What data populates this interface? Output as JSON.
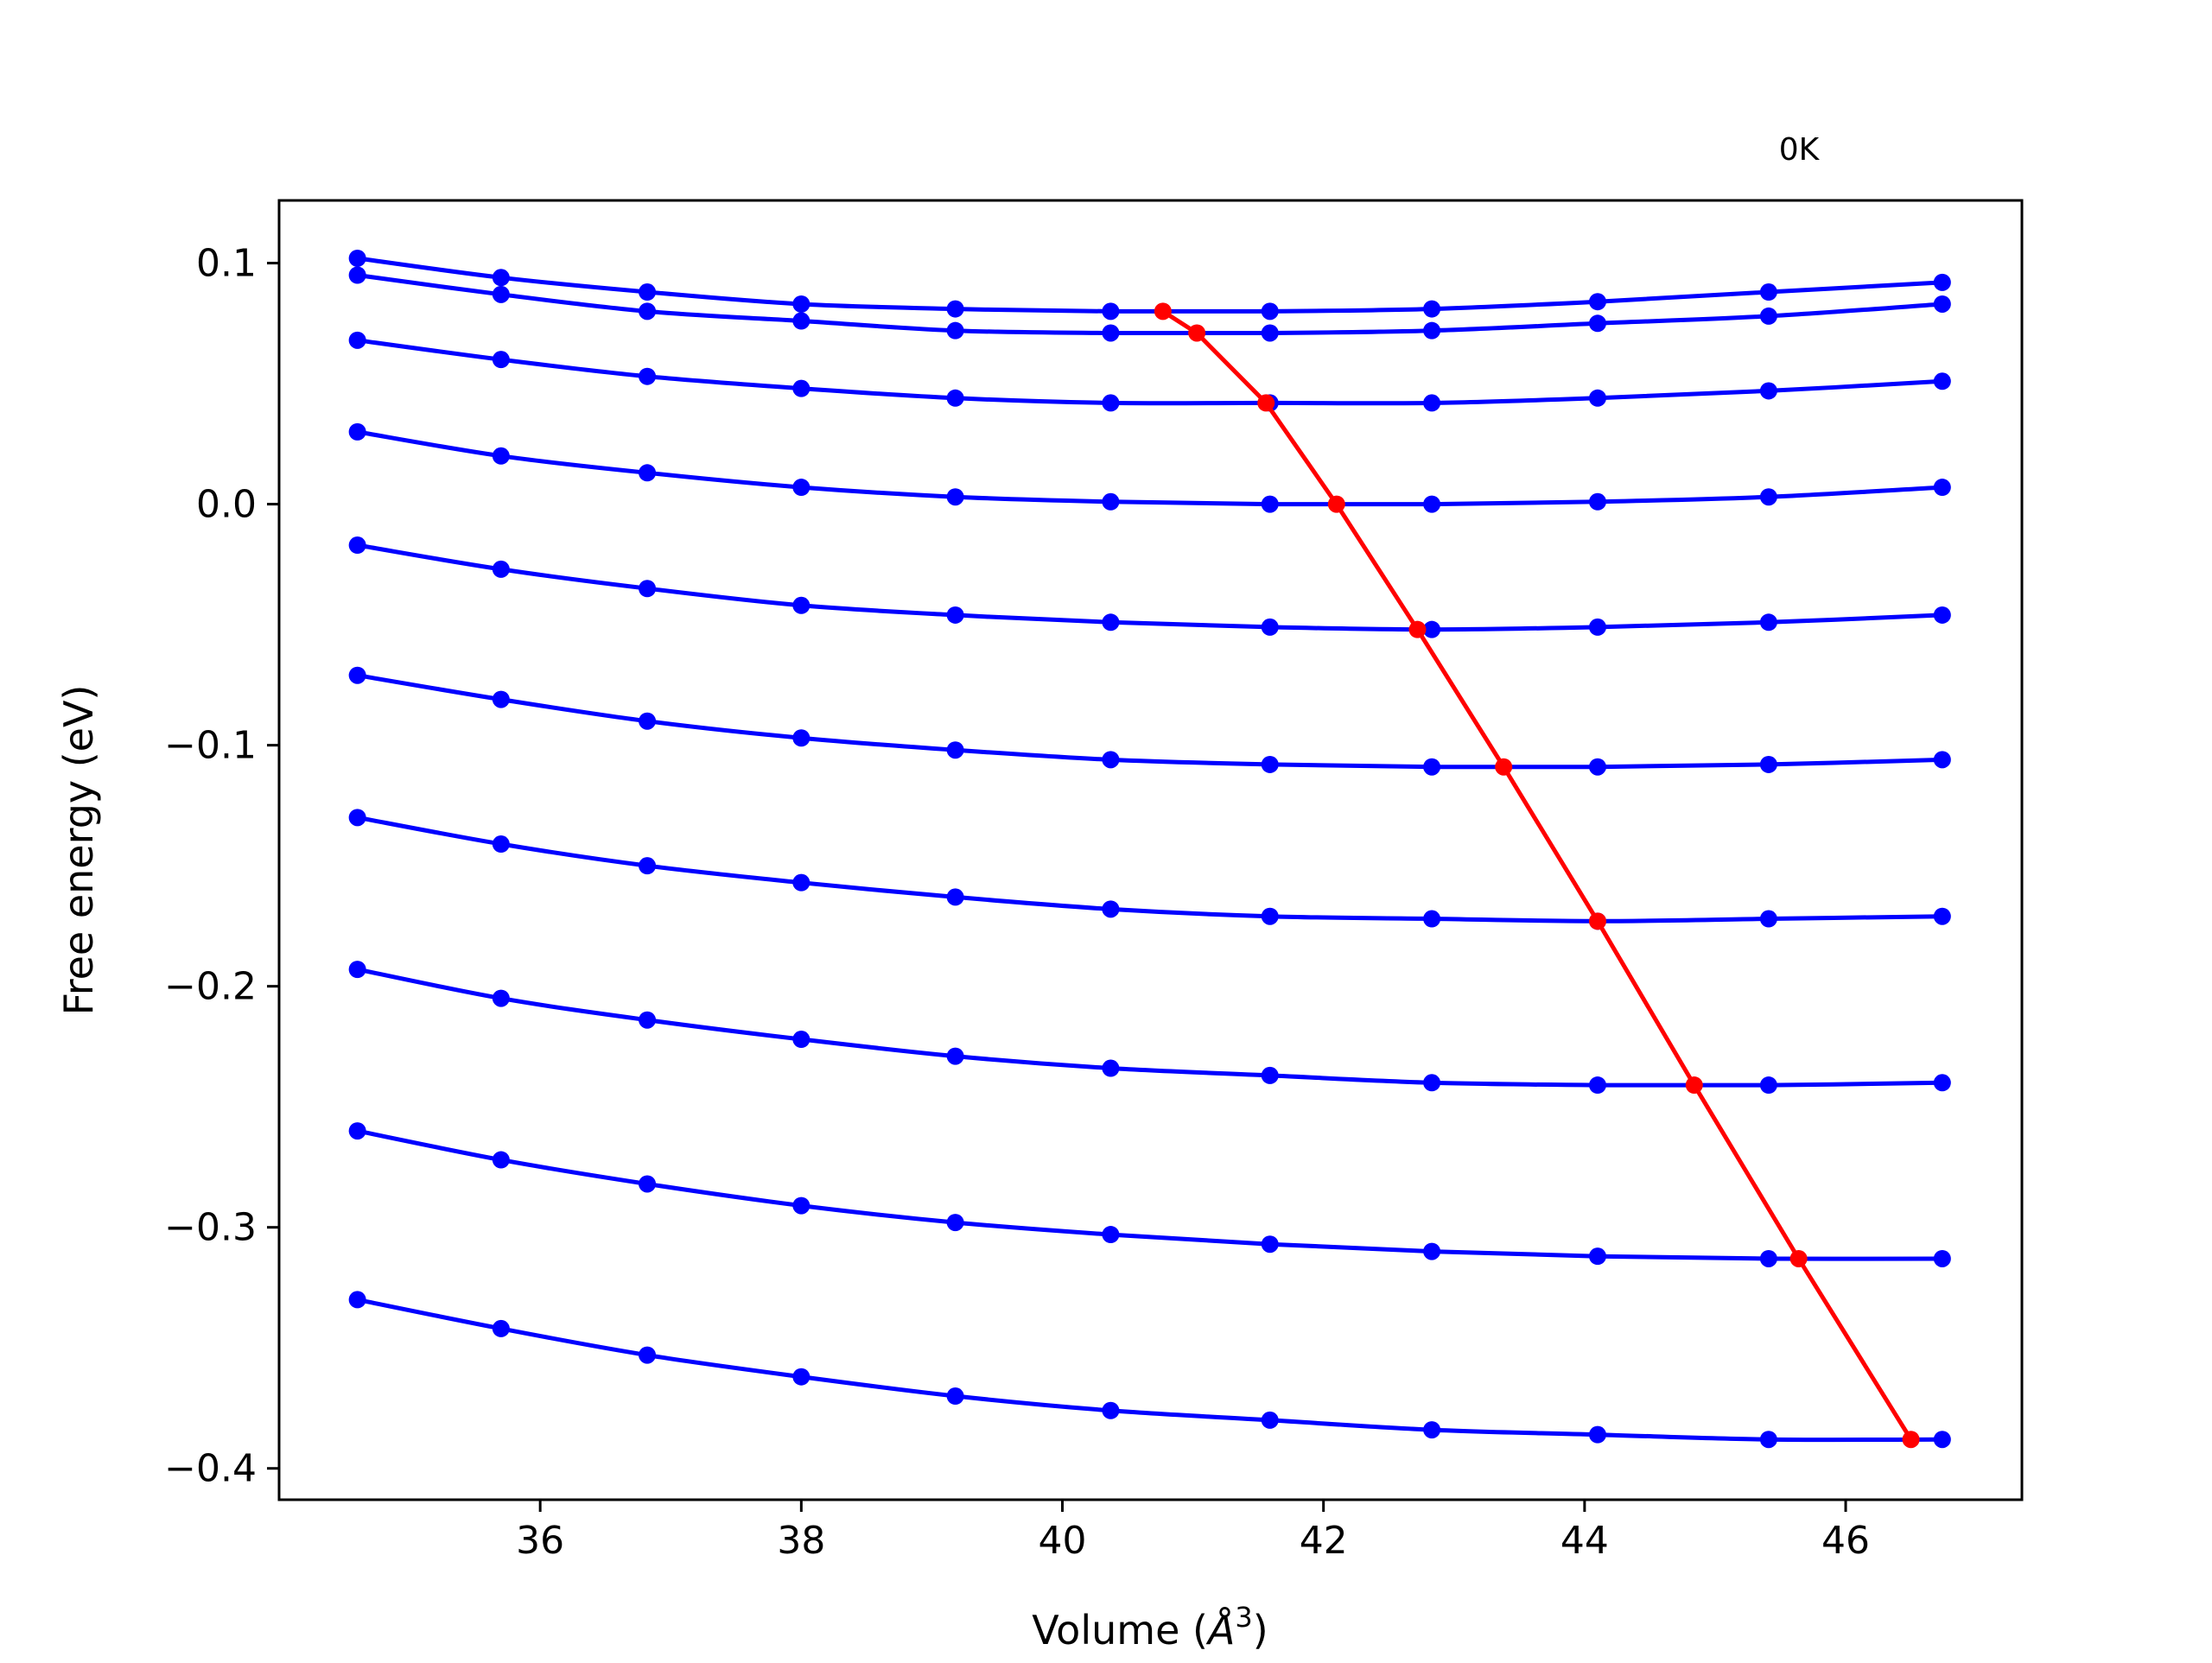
{
  "chart_data": {
    "type": "line",
    "title": "",
    "annotation": "0K",
    "xlabel": "Volume (",
    "xlabel_symbol": "Å",
    "xlabel_sup": "3",
    "xlabel_close": ")",
    "ylabel": "Free energy (eV)",
    "xlim": [
      34.0,
      47.35
    ],
    "ylim": [
      -0.413,
      0.126
    ],
    "xticks": [
      36,
      38,
      40,
      42,
      44,
      46
    ],
    "xtick_labels": [
      "36",
      "38",
      "40",
      "42",
      "44",
      "46"
    ],
    "yticks": [
      0.1,
      0.0,
      -0.1,
      -0.2,
      -0.3,
      -0.4
    ],
    "ytick_labels": [
      "0.1",
      "0.0",
      "−0.1",
      "−0.2",
      "−0.3",
      "−0.4"
    ],
    "grid": false,
    "legend": "none",
    "x": [
      34.6,
      35.7,
      36.82,
      38.0,
      39.18,
      40.37,
      41.59,
      42.83,
      44.1,
      45.41,
      46.74
    ],
    "series": [
      {
        "color": "#0000ff",
        "values": [
          0.102,
          0.094,
          0.088,
          0.083,
          0.081,
          0.08,
          0.08,
          0.081,
          0.084,
          0.088,
          0.092
        ]
      },
      {
        "color": "#0000ff",
        "values": [
          0.095,
          0.087,
          0.08,
          0.076,
          0.072,
          0.071,
          0.071,
          0.072,
          0.075,
          0.078,
          0.083
        ]
      },
      {
        "color": "#0000ff",
        "values": [
          0.068,
          0.06,
          0.053,
          0.048,
          0.044,
          0.042,
          0.042,
          0.042,
          0.044,
          0.047,
          0.051
        ]
      },
      {
        "color": "#0000ff",
        "values": [
          0.03,
          0.02,
          0.013,
          0.007,
          0.003,
          0.001,
          0.0,
          0.0,
          0.001,
          0.003,
          0.007
        ]
      },
      {
        "color": "#0000ff",
        "values": [
          -0.017,
          -0.027,
          -0.035,
          -0.042,
          -0.046,
          -0.049,
          -0.051,
          -0.052,
          -0.051,
          -0.049,
          -0.046
        ]
      },
      {
        "color": "#0000ff",
        "values": [
          -0.071,
          -0.081,
          -0.09,
          -0.097,
          -0.102,
          -0.106,
          -0.108,
          -0.109,
          -0.109,
          -0.108,
          -0.106
        ]
      },
      {
        "color": "#0000ff",
        "values": [
          -0.13,
          -0.141,
          -0.15,
          -0.157,
          -0.163,
          -0.168,
          -0.171,
          -0.172,
          -0.173,
          -0.172,
          -0.171
        ]
      },
      {
        "color": "#0000ff",
        "values": [
          -0.193,
          -0.205,
          -0.214,
          -0.222,
          -0.229,
          -0.234,
          -0.237,
          -0.24,
          -0.241,
          -0.241,
          -0.24
        ]
      },
      {
        "color": "#0000ff",
        "values": [
          -0.26,
          -0.272,
          -0.282,
          -0.291,
          -0.298,
          -0.303,
          -0.307,
          -0.31,
          -0.312,
          -0.313,
          -0.313
        ]
      },
      {
        "color": "#0000ff",
        "values": [
          -0.33,
          -0.342,
          -0.353,
          -0.362,
          -0.37,
          -0.376,
          -0.38,
          -0.384,
          -0.386,
          -0.388,
          -0.388
        ]
      }
    ],
    "minima_path": {
      "color": "#ff0000",
      "x": [
        40.77,
        41.03,
        41.56,
        42.1,
        42.72,
        43.38,
        44.1,
        44.84,
        45.64,
        46.5
      ],
      "y": [
        0.08,
        0.071,
        0.042,
        0.0,
        -0.052,
        -0.109,
        -0.173,
        -0.241,
        -0.313,
        -0.388
      ]
    }
  }
}
